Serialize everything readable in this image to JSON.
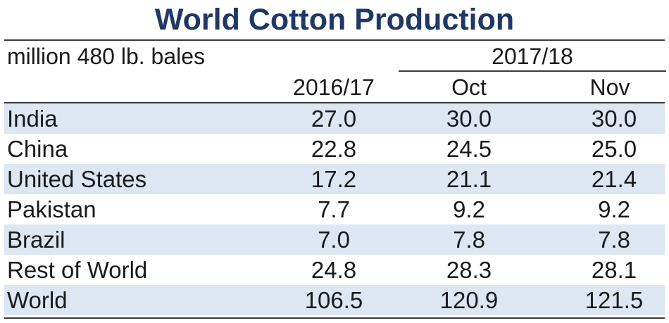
{
  "chart_data": {
    "type": "table",
    "title": "World Cotton Production",
    "units": "million 480 lb. bales",
    "group_header": "2017/18",
    "columns": [
      "2016/17",
      "Oct",
      "Nov"
    ],
    "rows": [
      {
        "country": "India",
        "values": [
          "27.0",
          "30.0",
          "30.0"
        ]
      },
      {
        "country": "China",
        "values": [
          "22.8",
          "24.5",
          "25.0"
        ]
      },
      {
        "country": "United States",
        "values": [
          "17.2",
          "21.1",
          "21.4"
        ]
      },
      {
        "country": "Pakistan",
        "values": [
          "7.7",
          "9.2",
          "9.2"
        ]
      },
      {
        "country": "Brazil",
        "values": [
          "7.0",
          "7.8",
          "7.8"
        ]
      },
      {
        "country": "Rest of World",
        "values": [
          "24.8",
          "28.3",
          "28.1"
        ]
      },
      {
        "country": "World",
        "values": [
          "106.5",
          "120.9",
          "121.5"
        ]
      }
    ],
    "colors": {
      "title": "#1f3864",
      "row_shade": "#dde6f3",
      "rule": "#3a3a3a"
    }
  }
}
